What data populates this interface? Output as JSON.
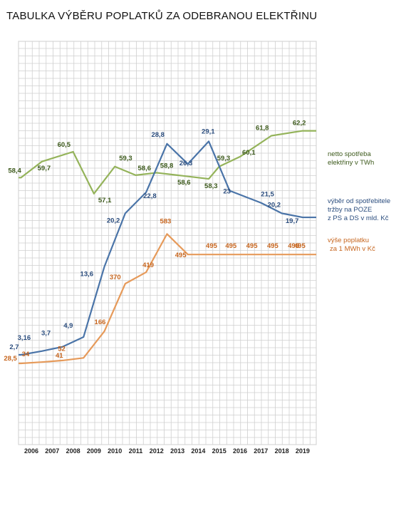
{
  "title": "TABULKA VÝBĚRU POPLATKŮ ZA ODEBRANOU ELEKTŘINU",
  "colors": {
    "green": "#94b35a",
    "green_label": "#3d5a1c",
    "blue": "#4a74a8",
    "blue_label": "#2b4d7e",
    "orange": "#e69a5a",
    "orange_label": "#c7661f",
    "grid": "#cfcfcf"
  },
  "chart_data": {
    "type": "line",
    "grid": true,
    "categories": [
      "2006",
      "2007",
      "2008",
      "2009",
      "2010",
      "2011",
      "2012",
      "2013",
      "2014",
      "2015",
      "2016",
      "2017",
      "2018",
      "2019"
    ],
    "series": [
      {
        "name": "netto spotřeba elektřiny v TWh",
        "legend_lines": [
          "netto spotřeba",
          "elektřiny v TWh"
        ],
        "color_key": "green",
        "points": [
          {
            "x": 2005.5,
            "y": 58.4,
            "label": "58,4"
          },
          {
            "x": 2006.5,
            "y": 59.7,
            "label": "59,7"
          },
          {
            "x": 2008.0,
            "y": 60.5,
            "label": "60,5"
          },
          {
            "x": 2009.0,
            "y": 57.1,
            "label": "57,1"
          },
          {
            "x": 2010.0,
            "y": 59.3,
            "label": "59,3"
          },
          {
            "x": 2011.0,
            "y": 58.6,
            "label": "58,6"
          },
          {
            "x": 2012.0,
            "y": 58.8,
            "label": "58,8"
          },
          {
            "x": 2013.0,
            "y": 58.6,
            "label": "58,6"
          },
          {
            "x": 2014.5,
            "y": 58.3,
            "label": "58,3"
          },
          {
            "x": 2015.0,
            "y": 59.3,
            "label": "59,3"
          },
          {
            "x": 2016.0,
            "y": 60.1,
            "label": "60,1"
          },
          {
            "x": 2017.5,
            "y": 61.8,
            "label": "61,8"
          },
          {
            "x": 2019.0,
            "y": 62.2,
            "label": "62,2"
          }
        ]
      },
      {
        "name": "výběr od spotřebitele tržby na POZE z PS a DS v mld. Kč",
        "legend_lines": [
          "výběr od spotřebitele",
          "tržby na POZE",
          "z PS a DS v mld. Kč"
        ],
        "color_key": "blue",
        "points": [
          {
            "x": 2005.5,
            "y": 2.7,
            "label": "2,7"
          },
          {
            "x": 2006.5,
            "y": 3.16,
            "label": "3,16"
          },
          {
            "x": 2007.5,
            "y": 3.7,
            "label": "3,7"
          },
          {
            "x": 2008.5,
            "y": 4.9,
            "label": "4,9"
          },
          {
            "x": 2009.5,
            "y": 13.6,
            "label": "13,6"
          },
          {
            "x": 2010.5,
            "y": 20.2,
            "label": "20,2"
          },
          {
            "x": 2011.5,
            "y": 22.8,
            "label": "22,8"
          },
          {
            "x": 2012.5,
            "y": 28.8,
            "label": "28,8"
          },
          {
            "x": 2013.5,
            "y": 26.3,
            "label": "26,3"
          },
          {
            "x": 2014.5,
            "y": 29.1,
            "label": "29,1"
          },
          {
            "x": 2015.5,
            "y": 23,
            "label": "23"
          },
          {
            "x": 2017.0,
            "y": 21.5,
            "label": "21,5"
          },
          {
            "x": 2018.0,
            "y": 20.2,
            "label": "20,2"
          },
          {
            "x": 2019.0,
            "y": 19.7,
            "label": "19,7"
          }
        ]
      },
      {
        "name": "výše poplatku za 1 MWh v Kč",
        "legend_lines": [
          "výše poplatku",
          "za 1 MWh v Kč"
        ],
        "color_key": "orange",
        "points": [
          {
            "x": 2005.5,
            "y": 28.5,
            "label": "28,5"
          },
          {
            "x": 2006.5,
            "y": 34,
            "label": "34"
          },
          {
            "x": 2007.5,
            "y": 41,
            "label": "41"
          },
          {
            "x": 2008.5,
            "y": 52,
            "label": "52"
          },
          {
            "x": 2009.5,
            "y": 166,
            "label": "166"
          },
          {
            "x": 2010.5,
            "y": 370,
            "label": "370"
          },
          {
            "x": 2011.5,
            "y": 419,
            "label": "419"
          },
          {
            "x": 2012.5,
            "y": 583,
            "label": "583"
          },
          {
            "x": 2013.5,
            "y": 495,
            "label": "495"
          },
          {
            "x": 2014.5,
            "y": 495,
            "label": "495"
          },
          {
            "x": 2015.5,
            "y": 495,
            "label": "495"
          },
          {
            "x": 2016.5,
            "y": 495,
            "label": "495"
          },
          {
            "x": 2017.5,
            "y": 495,
            "label": "495"
          },
          {
            "x": 2018.5,
            "y": 495,
            "label": "495"
          },
          {
            "x": 2019.0,
            "y": 495,
            "label": "495"
          }
        ]
      }
    ]
  }
}
